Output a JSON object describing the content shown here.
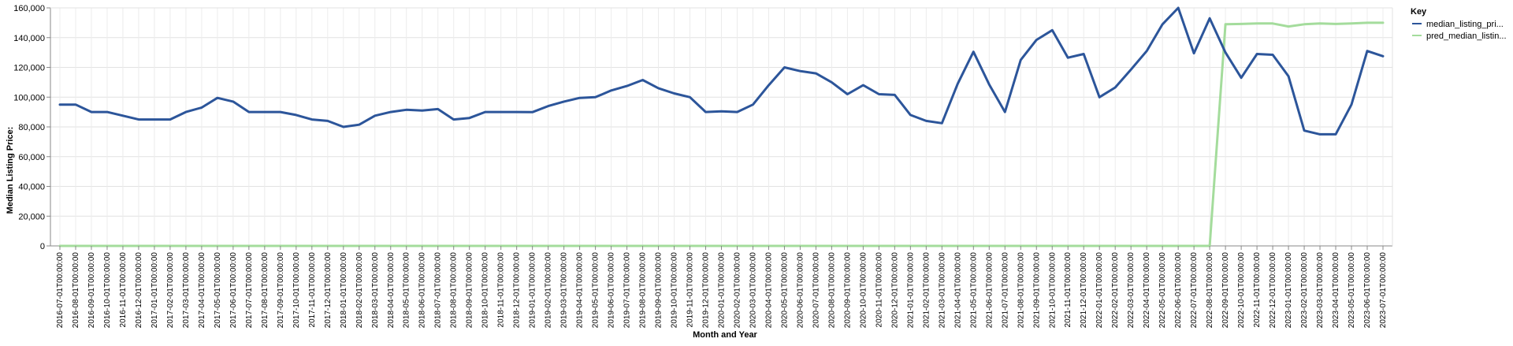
{
  "chart_data": {
    "type": "line",
    "title": "",
    "xlabel": "Month and Year",
    "ylabel": "Median Listing Price:",
    "ylim": [
      0,
      160000
    ],
    "yticks": [
      0,
      20000,
      40000,
      60000,
      80000,
      100000,
      120000,
      140000,
      160000
    ],
    "ytick_labels": [
      "0",
      "20,000",
      "40,000",
      "60,000",
      "80,000",
      "100,000",
      "120,000",
      "140,000",
      "160,000"
    ],
    "grid": true,
    "legend": {
      "title": "Key",
      "position": "right"
    },
    "x": [
      "2016-07-01T00:00:00",
      "2016-08-01T00:00:00",
      "2016-09-01T00:00:00",
      "2016-10-01T00:00:00",
      "2016-11-01T00:00:00",
      "2016-12-01T00:00:00",
      "2017-01-01T00:00:00",
      "2017-02-01T00:00:00",
      "2017-03-01T00:00:00",
      "2017-04-01T00:00:00",
      "2017-05-01T00:00:00",
      "2017-06-01T00:00:00",
      "2017-07-01T00:00:00",
      "2017-08-01T00:00:00",
      "2017-09-01T00:00:00",
      "2017-10-01T00:00:00",
      "2017-11-01T00:00:00",
      "2017-12-01T00:00:00",
      "2018-01-01T00:00:00",
      "2018-02-01T00:00:00",
      "2018-03-01T00:00:00",
      "2018-04-01T00:00:00",
      "2018-05-01T00:00:00",
      "2018-06-01T00:00:00",
      "2018-07-01T00:00:00",
      "2018-08-01T00:00:00",
      "2018-09-01T00:00:00",
      "2018-10-01T00:00:00",
      "2018-11-01T00:00:00",
      "2018-12-01T00:00:00",
      "2019-01-01T00:00:00",
      "2019-02-01T00:00:00",
      "2019-03-01T00:00:00",
      "2019-04-01T00:00:00",
      "2019-05-01T00:00:00",
      "2019-06-01T00:00:00",
      "2019-07-01T00:00:00",
      "2019-08-01T00:00:00",
      "2019-09-01T00:00:00",
      "2019-10-01T00:00:00",
      "2019-11-01T00:00:00",
      "2019-12-01T00:00:00",
      "2020-01-01T00:00:00",
      "2020-02-01T00:00:00",
      "2020-03-01T00:00:00",
      "2020-04-01T00:00:00",
      "2020-05-01T00:00:00",
      "2020-06-01T00:00:00",
      "2020-07-01T00:00:00",
      "2020-08-01T00:00:00",
      "2020-09-01T00:00:00",
      "2020-10-01T00:00:00",
      "2020-11-01T00:00:00",
      "2020-12-01T00:00:00",
      "2021-01-01T00:00:00",
      "2021-02-01T00:00:00",
      "2021-03-01T00:00:00",
      "2021-04-01T00:00:00",
      "2021-05-01T00:00:00",
      "2021-06-01T00:00:00",
      "2021-07-01T00:00:00",
      "2021-08-01T00:00:00",
      "2021-09-01T00:00:00",
      "2021-10-01T00:00:00",
      "2021-11-01T00:00:00",
      "2021-12-01T00:00:00",
      "2022-01-01T00:00:00",
      "2022-02-01T00:00:00",
      "2022-03-01T00:00:00",
      "2022-04-01T00:00:00",
      "2022-05-01T00:00:00",
      "2022-06-01T00:00:00",
      "2022-07-01T00:00:00",
      "2022-08-01T00:00:00",
      "2022-09-01T00:00:00",
      "2022-10-01T00:00:00",
      "2022-11-01T00:00:00",
      "2022-12-01T00:00:00",
      "2023-01-01T00:00:00",
      "2023-02-01T00:00:00",
      "2023-03-01T00:00:00",
      "2023-04-01T00:00:00",
      "2023-05-01T00:00:00",
      "2023-06-01T00:00:00",
      "2023-07-01T00:00:00"
    ],
    "series": [
      {
        "name": "median_listing_pri...",
        "color": "#2c559a",
        "values": [
          95000,
          95000,
          90000,
          90000,
          87500,
          85000,
          85000,
          85000,
          90000,
          93000,
          99500,
          97000,
          90000,
          90000,
          90000,
          88000,
          85000,
          84000,
          80000,
          81500,
          87500,
          90000,
          91500,
          91000,
          92000,
          85000,
          86000,
          90000,
          90000,
          90000,
          89900,
          94000,
          97000,
          99500,
          100000,
          104500,
          107500,
          111500,
          106000,
          102500,
          100000,
          90000,
          90500,
          90000,
          95000,
          108000,
          120000,
          117500,
          116000,
          110000,
          102000,
          108000,
          102000,
          101500,
          88000,
          84000,
          82500,
          109000,
          130500,
          108500,
          90000,
          125000,
          138500,
          145000,
          126500,
          129000,
          100000,
          106500,
          118500,
          131000,
          149000,
          160000,
          129500,
          153000,
          130000,
          113000,
          129000,
          128500,
          114000,
          77500,
          75000,
          75000,
          95000,
          131000,
          127500
        ]
      },
      {
        "name": "pred_median_listin...",
        "color": "#a4dc9c",
        "values": [
          0,
          0,
          0,
          0,
          0,
          0,
          0,
          0,
          0,
          0,
          0,
          0,
          0,
          0,
          0,
          0,
          0,
          0,
          0,
          0,
          0,
          0,
          0,
          0,
          0,
          0,
          0,
          0,
          0,
          0,
          0,
          0,
          0,
          0,
          0,
          0,
          0,
          0,
          0,
          0,
          0,
          0,
          0,
          0,
          0,
          0,
          0,
          0,
          0,
          0,
          0,
          0,
          0,
          0,
          0,
          0,
          0,
          0,
          0,
          0,
          0,
          0,
          0,
          0,
          0,
          0,
          0,
          0,
          0,
          0,
          0,
          0,
          0,
          0,
          149000,
          149200,
          149500,
          149500,
          147500,
          149000,
          149500,
          149200,
          149500,
          150000,
          150000
        ]
      }
    ]
  }
}
